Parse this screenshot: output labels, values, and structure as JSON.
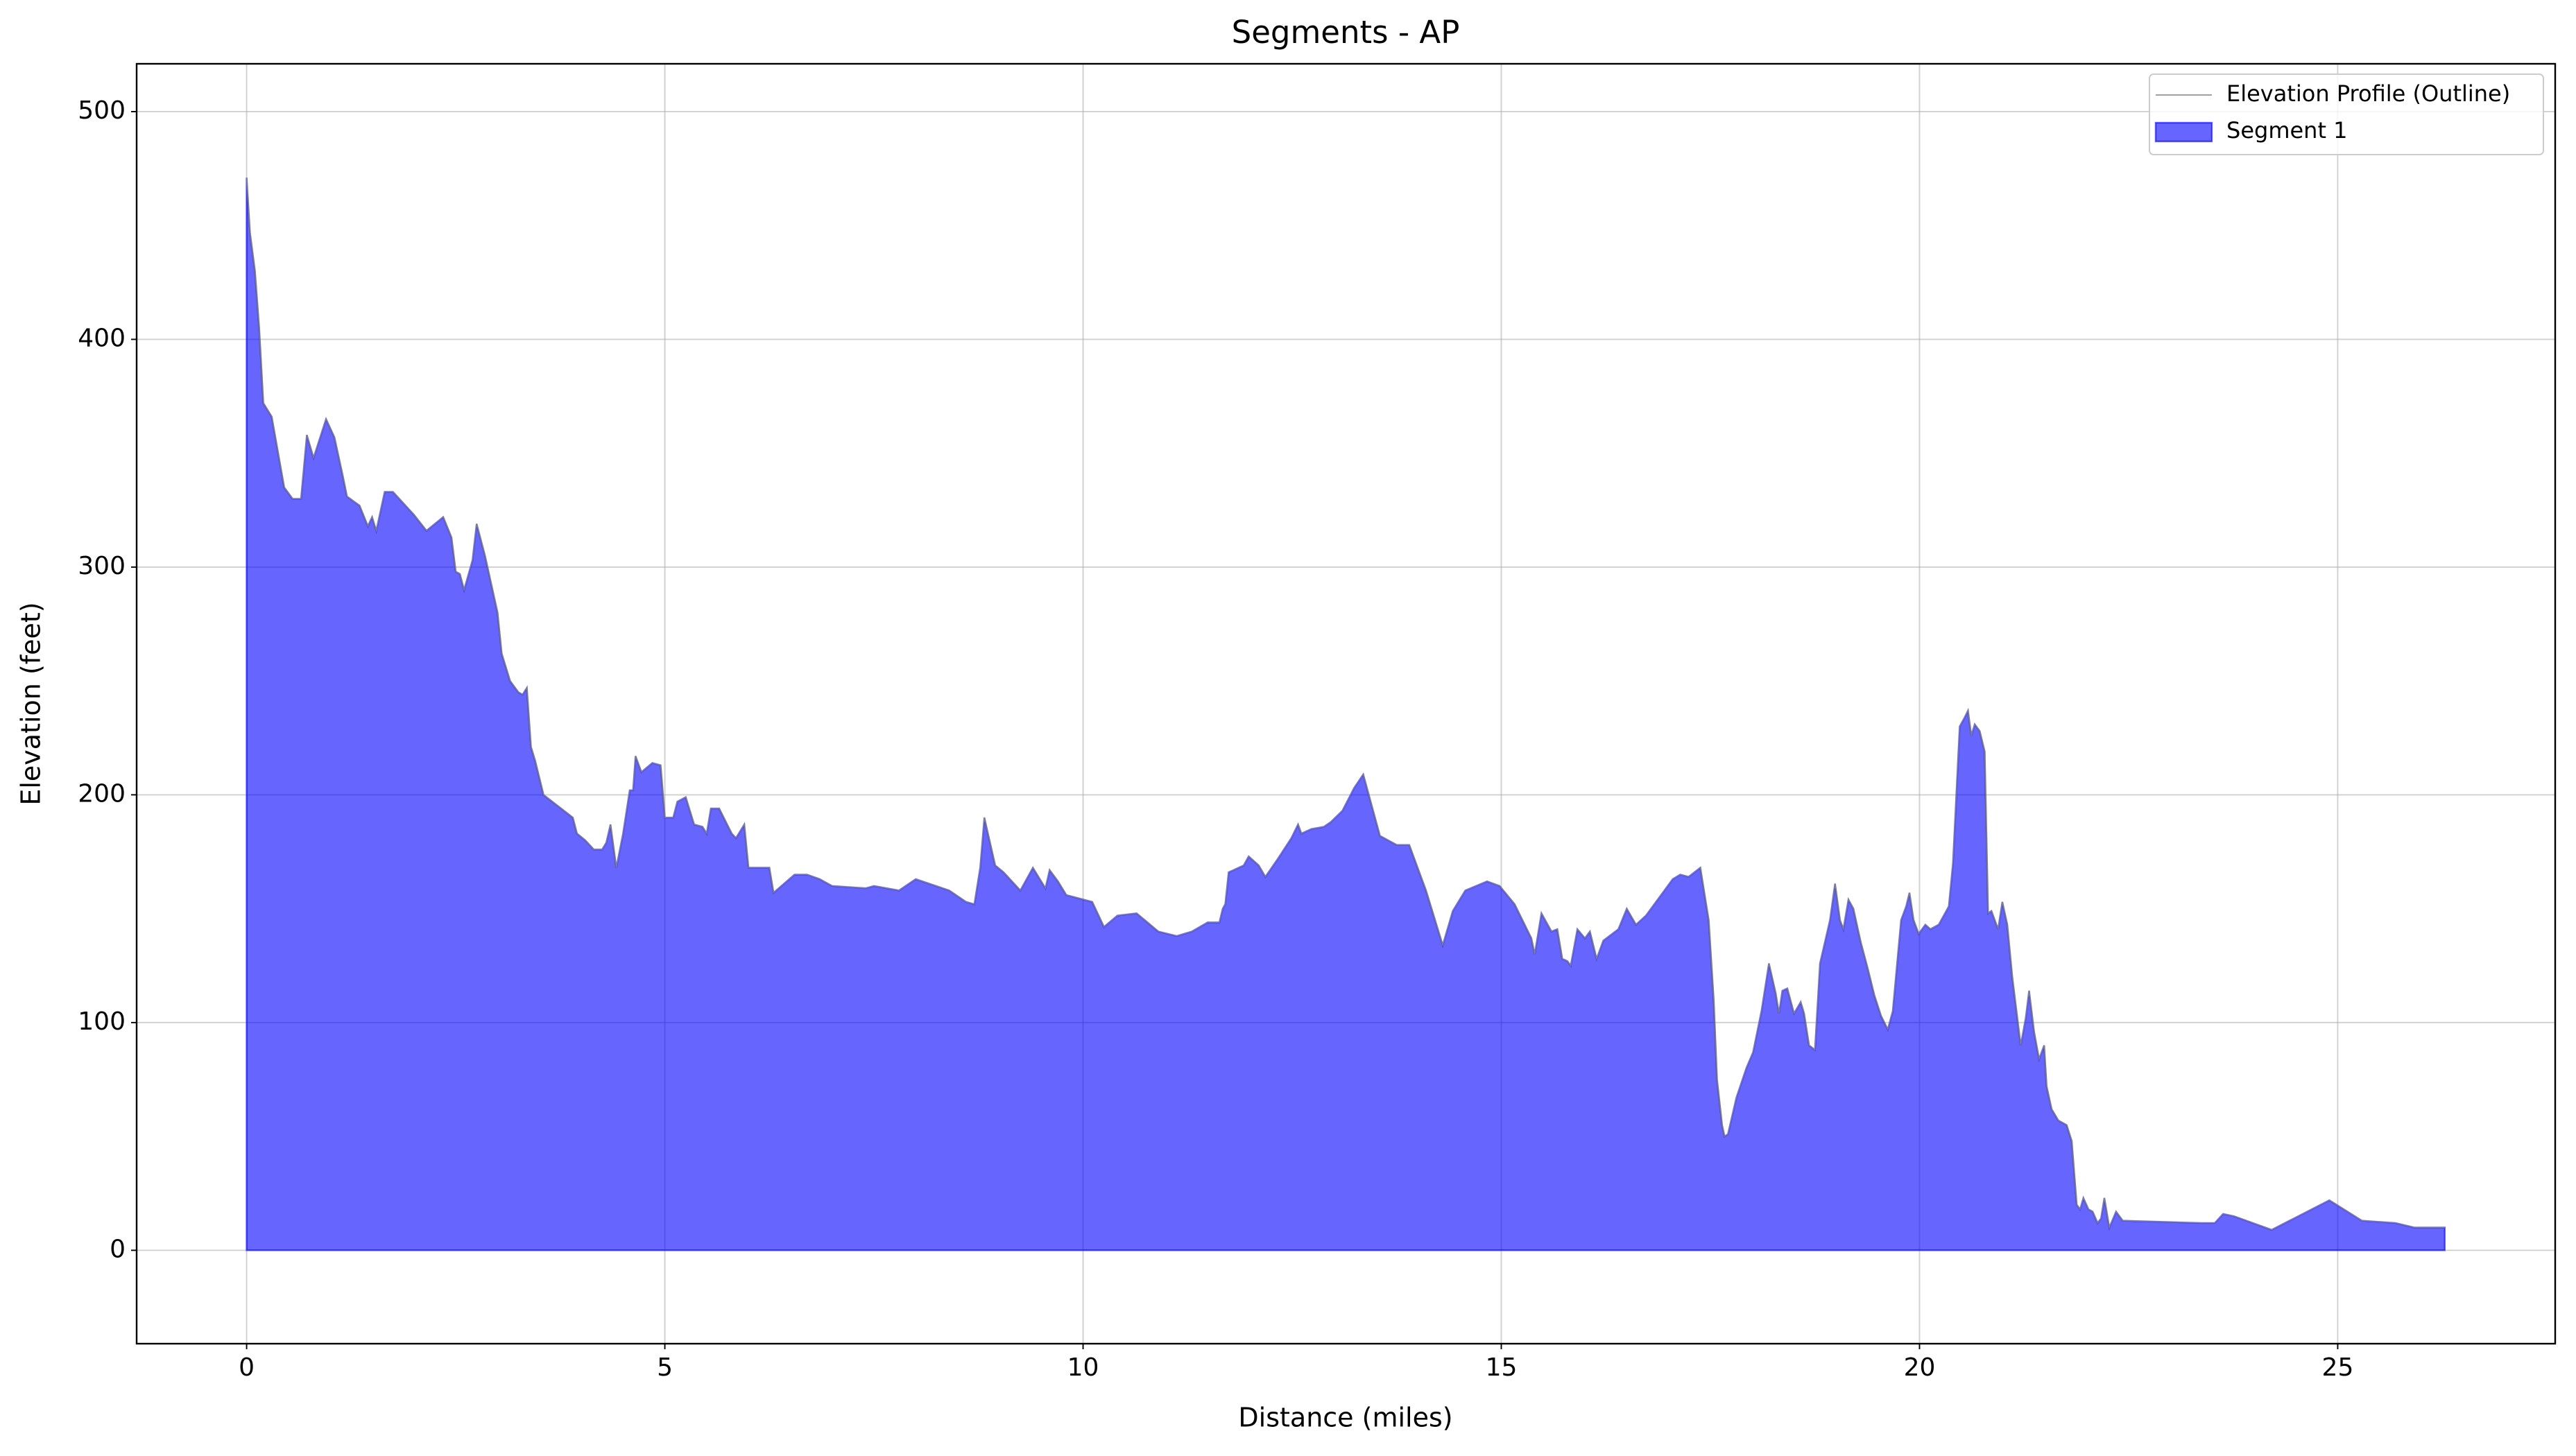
{
  "chart_data": {
    "type": "area",
    "title": "Segments - AP",
    "xlabel": "Distance (miles)",
    "ylabel": "Elevation (feet)",
    "x": [
      0,
      0.04,
      0.1,
      0.15,
      0.2,
      0.3,
      0.45,
      0.55,
      0.65,
      0.72,
      0.8,
      0.95,
      1.05,
      1.15,
      1.2,
      1.35,
      1.45,
      1.5,
      1.55,
      1.65,
      1.75,
      2.0,
      2.15,
      2.35,
      2.45,
      2.5,
      2.55,
      2.6,
      2.7,
      2.75,
      2.85,
      3.0,
      3.05,
      3.15,
      3.25,
      3.3,
      3.35,
      3.4,
      3.45,
      3.55,
      3.9,
      3.95,
      4.05,
      4.15,
      4.25,
      4.3,
      4.35,
      4.42,
      4.5,
      4.58,
      4.62,
      4.65,
      4.72,
      4.85,
      4.95,
      5.0,
      5.1,
      5.15,
      5.25,
      5.35,
      5.45,
      5.5,
      5.55,
      5.65,
      5.8,
      5.85,
      5.95,
      6.0,
      6.25,
      6.3,
      6.55,
      6.7,
      6.85,
      7.0,
      7.4,
      7.5,
      7.8,
      8.0,
      8.4,
      8.6,
      8.7,
      8.77,
      8.82,
      8.95,
      9.05,
      9.25,
      9.4,
      9.55,
      9.6,
      9.7,
      9.8,
      10.11,
      10.25,
      10.41,
      10.64,
      10.9,
      11.12,
      11.3,
      11.49,
      11.63,
      11.67,
      11.7,
      11.74,
      11.92,
      11.98,
      12.1,
      12.18,
      12.33,
      12.49,
      12.57,
      12.61,
      12.73,
      12.88,
      12.96,
      13.1,
      13.24,
      13.35,
      13.55,
      13.75,
      13.9,
      14.1,
      14.3,
      14.42,
      14.57,
      14.83,
      14.98,
      15.16,
      15.36,
      15.4,
      15.48,
      15.6,
      15.67,
      15.73,
      15.79,
      15.83,
      15.91,
      16.0,
      16.06,
      16.14,
      16.22,
      16.4,
      16.5,
      16.61,
      16.73,
      16.89,
      17.05,
      17.14,
      17.24,
      17.38,
      17.48,
      17.54,
      17.58,
      17.64,
      17.67,
      17.71,
      17.81,
      17.93,
      18.01,
      18.11,
      18.2,
      18.28,
      18.32,
      18.36,
      18.42,
      18.5,
      18.58,
      18.62,
      18.68,
      18.75,
      18.81,
      18.93,
      18.99,
      19.05,
      19.09,
      19.15,
      19.21,
      19.27,
      19.3,
      19.38,
      19.46,
      19.54,
      19.62,
      19.68,
      19.78,
      19.84,
      19.88,
      19.93,
      19.99,
      20.07,
      20.13,
      20.23,
      20.35,
      20.4,
      20.48,
      20.54,
      20.58,
      20.62,
      20.66,
      20.72,
      20.78,
      20.82,
      20.86,
      20.94,
      20.99,
      21.05,
      21.11,
      21.21,
      21.27,
      21.31,
      21.37,
      21.43,
      21.49,
      21.52,
      21.58,
      21.66,
      21.76,
      21.82,
      21.88,
      21.92,
      21.96,
      22.02,
      22.07,
      22.13,
      22.17,
      22.21,
      22.27,
      22.35,
      22.43,
      23.37,
      23.53,
      23.63,
      23.76,
      24.21,
      24.9,
      25.29,
      25.69,
      25.92,
      26.28
    ],
    "series": [
      {
        "name": "Elevation Profile (Outline)",
        "color": "#808080",
        "style": "line",
        "values": [
          471,
          447,
          430,
          405,
          372,
          366,
          335,
          330,
          330,
          358,
          348,
          365,
          357,
          340,
          331,
          327,
          318,
          322,
          316,
          333,
          333,
          323,
          316,
          322,
          313,
          298,
          297,
          290,
          303,
          319,
          305,
          280,
          262,
          250,
          245,
          244,
          247,
          221,
          215,
          200,
          190,
          183,
          180,
          176,
          176,
          179,
          187,
          168,
          183,
          202,
          202,
          217,
          210,
          214,
          213,
          190,
          190,
          197,
          199,
          187,
          186,
          183,
          194,
          194,
          183,
          181,
          187,
          168,
          168,
          157,
          165,
          165,
          163,
          160,
          159,
          160,
          158,
          163,
          158,
          153,
          152,
          168,
          190,
          169,
          166,
          158,
          168,
          159,
          167,
          162,
          156,
          153,
          142,
          147,
          148,
          140,
          138,
          140,
          144,
          144,
          150,
          152,
          166,
          169,
          173,
          169,
          164,
          172,
          181,
          187,
          183,
          185,
          186,
          188,
          193,
          203,
          209,
          182,
          178,
          178,
          158,
          134,
          149,
          158,
          162,
          160,
          152,
          137,
          130,
          148,
          140,
          141,
          128,
          127,
          125,
          141,
          137,
          140,
          128,
          136,
          141,
          150,
          143,
          147,
          155,
          163,
          165,
          164,
          168,
          145,
          110,
          75,
          55,
          50,
          51,
          67,
          80,
          87,
          105,
          126,
          113,
          104,
          114,
          115,
          104,
          109,
          104,
          90,
          88,
          126,
          145,
          161,
          145,
          141,
          154,
          150,
          140,
          135,
          124,
          112,
          103,
          97,
          105,
          145,
          151,
          157,
          145,
          139,
          143,
          141,
          143,
          151,
          170,
          230,
          234,
          237,
          226,
          231,
          228,
          219,
          148,
          149,
          141,
          153,
          143,
          120,
          90,
          102,
          114,
          96,
          84,
          90,
          72,
          62,
          57,
          55,
          48,
          20,
          18,
          23,
          18,
          17,
          12,
          14,
          23,
          10,
          17,
          13,
          12,
          12,
          16,
          15,
          9,
          22,
          13,
          12,
          10,
          10
        ]
      },
      {
        "name": "Segment 1",
        "color": "#0000ff",
        "alpha": 0.6,
        "style": "fill",
        "values": [
          471,
          447,
          430,
          405,
          372,
          366,
          335,
          330,
          330,
          358,
          348,
          365,
          357,
          340,
          331,
          327,
          318,
          322,
          316,
          333,
          333,
          323,
          316,
          322,
          313,
          298,
          297,
          290,
          303,
          319,
          305,
          280,
          262,
          250,
          245,
          244,
          247,
          221,
          215,
          200,
          190,
          183,
          180,
          176,
          176,
          179,
          187,
          168,
          183,
          202,
          202,
          217,
          210,
          214,
          213,
          190,
          190,
          197,
          199,
          187,
          186,
          183,
          194,
          194,
          183,
          181,
          187,
          168,
          168,
          157,
          165,
          165,
          163,
          160,
          159,
          160,
          158,
          163,
          158,
          153,
          152,
          168,
          190,
          169,
          166,
          158,
          168,
          159,
          167,
          162,
          156,
          153,
          142,
          147,
          148,
          140,
          138,
          140,
          144,
          144,
          150,
          152,
          166,
          169,
          173,
          169,
          164,
          172,
          181,
          187,
          183,
          185,
          186,
          188,
          193,
          203,
          209,
          182,
          178,
          178,
          158,
          134,
          149,
          158,
          162,
          160,
          152,
          137,
          130,
          148,
          140,
          141,
          128,
          127,
          125,
          141,
          137,
          140,
          128,
          136,
          141,
          150,
          143,
          147,
          155,
          163,
          165,
          164,
          168,
          145,
          110,
          75,
          55,
          50,
          51,
          67,
          80,
          87,
          105,
          126,
          113,
          104,
          114,
          115,
          104,
          109,
          104,
          90,
          88,
          126,
          145,
          161,
          145,
          141,
          154,
          150,
          140,
          135,
          124,
          112,
          103,
          97,
          105,
          145,
          151,
          157,
          145,
          139,
          143,
          141,
          143,
          151,
          170,
          230,
          234,
          237,
          226,
          231,
          228,
          219,
          148,
          149,
          141,
          153,
          143,
          120,
          90,
          102,
          114,
          96,
          84,
          90,
          72,
          62,
          57,
          55,
          48,
          20,
          18,
          23,
          18,
          17,
          12,
          14,
          23,
          10,
          17,
          13,
          12,
          12,
          16,
          15,
          9,
          22,
          13,
          12,
          10,
          10
        ]
      }
    ],
    "xlim": [
      -1.315,
      27.6
    ],
    "ylim": [
      -41,
      521
    ],
    "xticks": [
      0,
      5,
      10,
      15,
      20,
      25
    ],
    "yticks": [
      0,
      100,
      200,
      300,
      400,
      500
    ],
    "grid": true,
    "legend": "upper right"
  }
}
